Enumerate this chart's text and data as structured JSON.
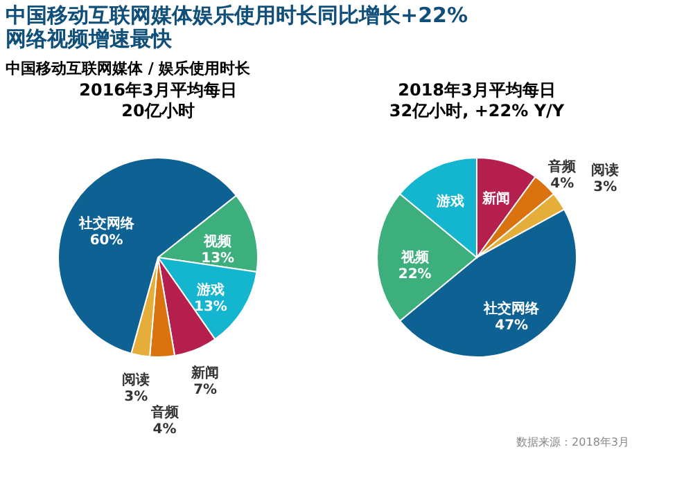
{
  "chart_data": [
    {
      "type": "pie",
      "title": "2016年3月平均每日",
      "subtitle": "20亿小时",
      "annotations": [
        "中国移动互联网媒体娱乐使用时长同比增长+22%",
        "网络视频增速最快",
        "中国移动互联网媒体 / 娱乐使用时长"
      ],
      "categories": [
        "视频",
        "游戏",
        "新闻",
        "音频",
        "阅读",
        "社交网络"
      ],
      "values": [
        13,
        13,
        7,
        4,
        3,
        60
      ],
      "colors": [
        "#3daf7d",
        "#13b5cf",
        "#b51f4e",
        "#d9720f",
        "#e5ae3a",
        "#0e6193"
      ],
      "value_labels": [
        "13%",
        "13%",
        "7%",
        "4%",
        "3%",
        "60%"
      ]
    },
    {
      "type": "pie",
      "title": "2018年3月平均每日",
      "subtitle": "32亿小时, +22% Y/Y",
      "annotations": [
        "数据来源：2018年3月"
      ],
      "categories": [
        "新闻",
        "音频",
        "阅读",
        "社交网络",
        "视频",
        "游戏"
      ],
      "values": [
        10,
        4,
        3,
        47,
        22,
        14
      ],
      "colors": [
        "#b51f4e",
        "#d9720f",
        "#e5ae3a",
        "#0e6193",
        "#3daf7d",
        "#13b5cf"
      ],
      "value_labels": [
        null,
        "4%",
        "3%",
        "47%",
        "22%",
        null
      ]
    }
  ]
}
